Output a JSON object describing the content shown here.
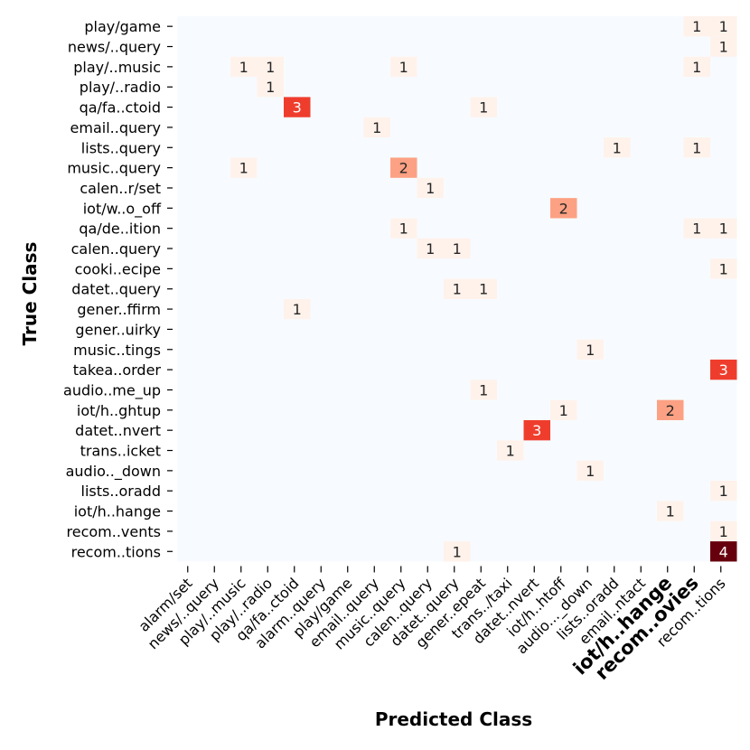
{
  "chart_data": {
    "type": "heatmap",
    "xlabel": "Predicted Class",
    "ylabel": "True Class",
    "colormap": "Reds",
    "background_color": "#f7fbff",
    "highlight_color": "#ff0000",
    "value_range": [
      0,
      4
    ],
    "y_categories": [
      "play/game",
      "news/..query",
      "play/..music",
      "play/..radio",
      "qa/fa..ctoid",
      "email..query",
      "lists..query",
      "music..query",
      "calen..r/set",
      "iot/w..o_off",
      "qa/de..ition",
      "calen..query",
      "cooki..ecipe",
      "datet..query",
      "gener..ffirm",
      "gener..uirky",
      "music..tings",
      "takea..order",
      "audio..me_up",
      "iot/h..ghtup",
      "datet..nvert",
      "trans..icket",
      "audio.._down",
      "lists..oradd",
      "iot/h..hange",
      "recom..vents",
      "recom..tions"
    ],
    "x_columns": 21,
    "x_tick_labels": [
      {
        "text": "alarm/set",
        "col": 0,
        "highlight": false
      },
      {
        "text": "news/..query",
        "col": 1,
        "highlight": false
      },
      {
        "text": "play/..music",
        "col": 2,
        "highlight": false
      },
      {
        "text": "play/..radio",
        "col": 3,
        "highlight": false
      },
      {
        "text": "qa/fa..ctoid",
        "col": 4,
        "highlight": false
      },
      {
        "text": "alarm..query",
        "col": 5,
        "highlight": false
      },
      {
        "text": "play/game",
        "col": 6,
        "highlight": false
      },
      {
        "text": "email..query",
        "col": 7,
        "highlight": false
      },
      {
        "text": "music..query",
        "col": 8,
        "highlight": false
      },
      {
        "text": "calen..query",
        "col": 9,
        "highlight": false
      },
      {
        "text": "datet..query",
        "col": 10,
        "highlight": false
      },
      {
        "text": "gener..epeat",
        "col": 11,
        "highlight": false
      },
      {
        "text": "trans../taxi",
        "col": 12,
        "highlight": false
      },
      {
        "text": "datet..nvert",
        "col": 13,
        "highlight": false
      },
      {
        "text": "iot/h..htoff",
        "col": 14,
        "highlight": false
      },
      {
        "text": "audio..._down",
        "col": 15,
        "highlight": false
      },
      {
        "text": "lists..oradd",
        "col": 16,
        "highlight": false
      },
      {
        "text": "email..ntact",
        "col": 17,
        "highlight": false
      },
      {
        "text": "iot/h..hange",
        "col": 18,
        "highlight": true
      },
      {
        "text": "recom..ovies",
        "col": 19,
        "highlight": true
      },
      {
        "text": "recom..tions",
        "col": 20,
        "highlight": false
      }
    ],
    "cells": [
      {
        "row": 0,
        "col": 19,
        "value": 1
      },
      {
        "row": 0,
        "col": 20,
        "value": 1
      },
      {
        "row": 1,
        "col": 20,
        "value": 1
      },
      {
        "row": 2,
        "col": 2,
        "value": 1
      },
      {
        "row": 2,
        "col": 3,
        "value": 1
      },
      {
        "row": 2,
        "col": 8,
        "value": 1
      },
      {
        "row": 2,
        "col": 19,
        "value": 1
      },
      {
        "row": 3,
        "col": 3,
        "value": 1
      },
      {
        "row": 4,
        "col": 4,
        "value": 3
      },
      {
        "row": 4,
        "col": 11,
        "value": 1
      },
      {
        "row": 5,
        "col": 7,
        "value": 1
      },
      {
        "row": 6,
        "col": 16,
        "value": 1
      },
      {
        "row": 6,
        "col": 19,
        "value": 1
      },
      {
        "row": 7,
        "col": 2,
        "value": 1
      },
      {
        "row": 7,
        "col": 8,
        "value": 2
      },
      {
        "row": 8,
        "col": 9,
        "value": 1
      },
      {
        "row": 9,
        "col": 14,
        "value": 2
      },
      {
        "row": 10,
        "col": 8,
        "value": 1
      },
      {
        "row": 10,
        "col": 19,
        "value": 1
      },
      {
        "row": 10,
        "col": 20,
        "value": 1
      },
      {
        "row": 11,
        "col": 9,
        "value": 1
      },
      {
        "row": 11,
        "col": 10,
        "value": 1
      },
      {
        "row": 12,
        "col": 20,
        "value": 1
      },
      {
        "row": 13,
        "col": 10,
        "value": 1
      },
      {
        "row": 13,
        "col": 11,
        "value": 1
      },
      {
        "row": 14,
        "col": 4,
        "value": 1
      },
      {
        "row": 16,
        "col": 15,
        "value": 1
      },
      {
        "row": 17,
        "col": 20,
        "value": 3
      },
      {
        "row": 18,
        "col": 11,
        "value": 1
      },
      {
        "row": 19,
        "col": 14,
        "value": 1
      },
      {
        "row": 19,
        "col": 18,
        "value": 2
      },
      {
        "row": 20,
        "col": 13,
        "value": 3
      },
      {
        "row": 21,
        "col": 12,
        "value": 1
      },
      {
        "row": 22,
        "col": 15,
        "value": 1
      },
      {
        "row": 23,
        "col": 20,
        "value": 1
      },
      {
        "row": 24,
        "col": 18,
        "value": 1
      },
      {
        "row": 25,
        "col": 20,
        "value": 1
      },
      {
        "row": 26,
        "col": 10,
        "value": 1
      },
      {
        "row": 26,
        "col": 20,
        "value": 4
      }
    ]
  }
}
